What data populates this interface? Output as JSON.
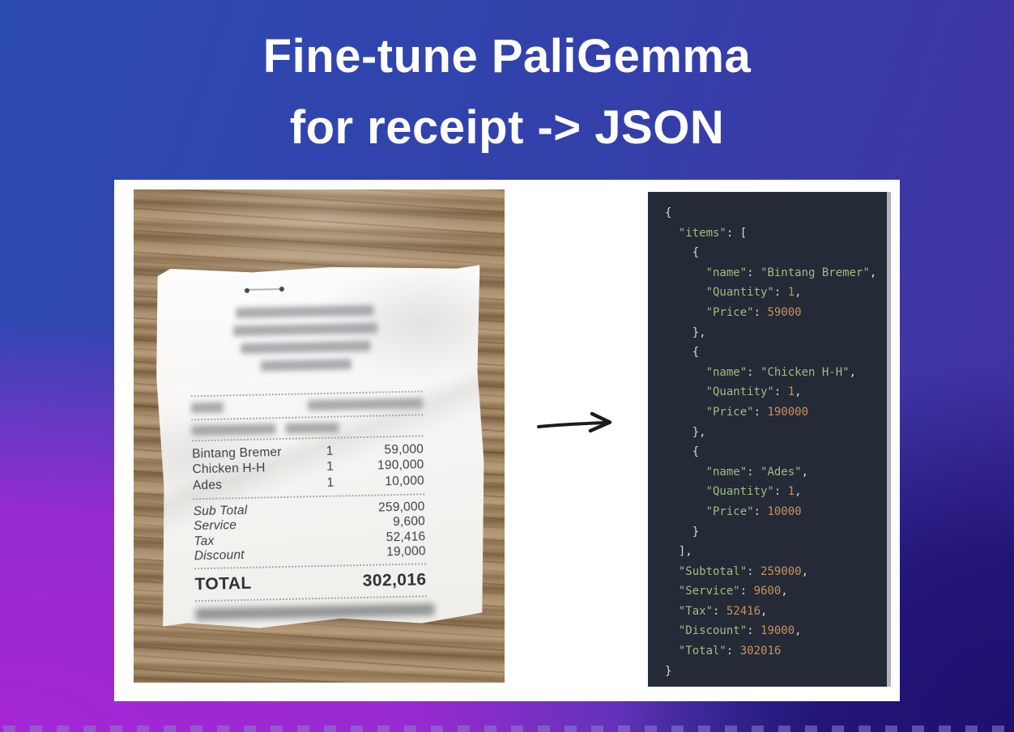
{
  "title": {
    "line1": "Fine-tune PaliGemma",
    "line2": "for receipt -> JSON"
  },
  "receipt": {
    "items": [
      {
        "name": "Bintang Bremer",
        "qty": "1",
        "price": "59,000"
      },
      {
        "name": "Chicken H-H",
        "qty": "1",
        "price": "190,000"
      },
      {
        "name": "Ades",
        "qty": "1",
        "price": "10,000"
      }
    ],
    "summary": [
      {
        "label": "Sub Total",
        "value": "259,000"
      },
      {
        "label": "Service",
        "value": "9,600"
      },
      {
        "label": "Tax",
        "value": "52,416"
      },
      {
        "label": "Discount",
        "value": "19,000"
      }
    ],
    "total": {
      "label": "TOTAL",
      "value": "302,016"
    }
  },
  "code_panel": {
    "language": "json",
    "lines": [
      [
        [
          "p",
          "{"
        ]
      ],
      [
        [
          "p",
          "  "
        ],
        [
          "k",
          "\"items\""
        ],
        [
          "p",
          ": ["
        ]
      ],
      [
        [
          "p",
          "    {"
        ]
      ],
      [
        [
          "p",
          "      "
        ],
        [
          "k",
          "\"name\""
        ],
        [
          "p",
          ": "
        ],
        [
          "s",
          "\"Bintang Bremer\""
        ],
        [
          "p",
          ","
        ]
      ],
      [
        [
          "p",
          "      "
        ],
        [
          "k",
          "\"Quantity\""
        ],
        [
          "p",
          ": "
        ],
        [
          "n",
          "1"
        ],
        [
          "p",
          ","
        ]
      ],
      [
        [
          "p",
          "      "
        ],
        [
          "k",
          "\"Price\""
        ],
        [
          "p",
          ": "
        ],
        [
          "n",
          "59000"
        ]
      ],
      [
        [
          "p",
          "    },"
        ]
      ],
      [
        [
          "p",
          "    {"
        ]
      ],
      [
        [
          "p",
          "      "
        ],
        [
          "k",
          "\"name\""
        ],
        [
          "p",
          ": "
        ],
        [
          "s",
          "\"Chicken H-H\""
        ],
        [
          "p",
          ","
        ]
      ],
      [
        [
          "p",
          "      "
        ],
        [
          "k",
          "\"Quantity\""
        ],
        [
          "p",
          ": "
        ],
        [
          "n",
          "1"
        ],
        [
          "p",
          ","
        ]
      ],
      [
        [
          "p",
          "      "
        ],
        [
          "k",
          "\"Price\""
        ],
        [
          "p",
          ": "
        ],
        [
          "n",
          "190000"
        ]
      ],
      [
        [
          "p",
          "    },"
        ]
      ],
      [
        [
          "p",
          "    {"
        ]
      ],
      [
        [
          "p",
          "      "
        ],
        [
          "k",
          "\"name\""
        ],
        [
          "p",
          ": "
        ],
        [
          "s",
          "\"Ades\""
        ],
        [
          "p",
          ","
        ]
      ],
      [
        [
          "p",
          "      "
        ],
        [
          "k",
          "\"Quantity\""
        ],
        [
          "p",
          ": "
        ],
        [
          "n",
          "1"
        ],
        [
          "p",
          ","
        ]
      ],
      [
        [
          "p",
          "      "
        ],
        [
          "k",
          "\"Price\""
        ],
        [
          "p",
          ": "
        ],
        [
          "n",
          "10000"
        ]
      ],
      [
        [
          "p",
          "    }"
        ]
      ],
      [
        [
          "p",
          "  ],"
        ]
      ],
      [
        [
          "p",
          "  "
        ],
        [
          "k",
          "\"Subtotal\""
        ],
        [
          "p",
          ": "
        ],
        [
          "n",
          "259000"
        ],
        [
          "p",
          ","
        ]
      ],
      [
        [
          "p",
          "  "
        ],
        [
          "k",
          "\"Service\""
        ],
        [
          "p",
          ": "
        ],
        [
          "n",
          "9600"
        ],
        [
          "p",
          ","
        ]
      ],
      [
        [
          "p",
          "  "
        ],
        [
          "k",
          "\"Tax\""
        ],
        [
          "p",
          ": "
        ],
        [
          "n",
          "52416"
        ],
        [
          "p",
          ","
        ]
      ],
      [
        [
          "p",
          "  "
        ],
        [
          "k",
          "\"Discount\""
        ],
        [
          "p",
          ": "
        ],
        [
          "n",
          "19000"
        ],
        [
          "p",
          ","
        ]
      ],
      [
        [
          "p",
          "  "
        ],
        [
          "k",
          "\"Total\""
        ],
        [
          "p",
          ": "
        ],
        [
          "n",
          "302016"
        ]
      ],
      [
        [
          "p",
          "}"
        ]
      ]
    ]
  },
  "colors": {
    "background_blue": "#2c4bb3",
    "background_violet": "#442fa0",
    "background_magenta": "#a726d6",
    "background_indigo": "#1d1070",
    "card_white": "#ffffff",
    "panel_bg": "#242a36",
    "code_key_green": "#9cbd85",
    "code_number_orange": "#cb915a",
    "code_punct": "#d5d9e0",
    "receipt_text": "#3f3f3f"
  }
}
